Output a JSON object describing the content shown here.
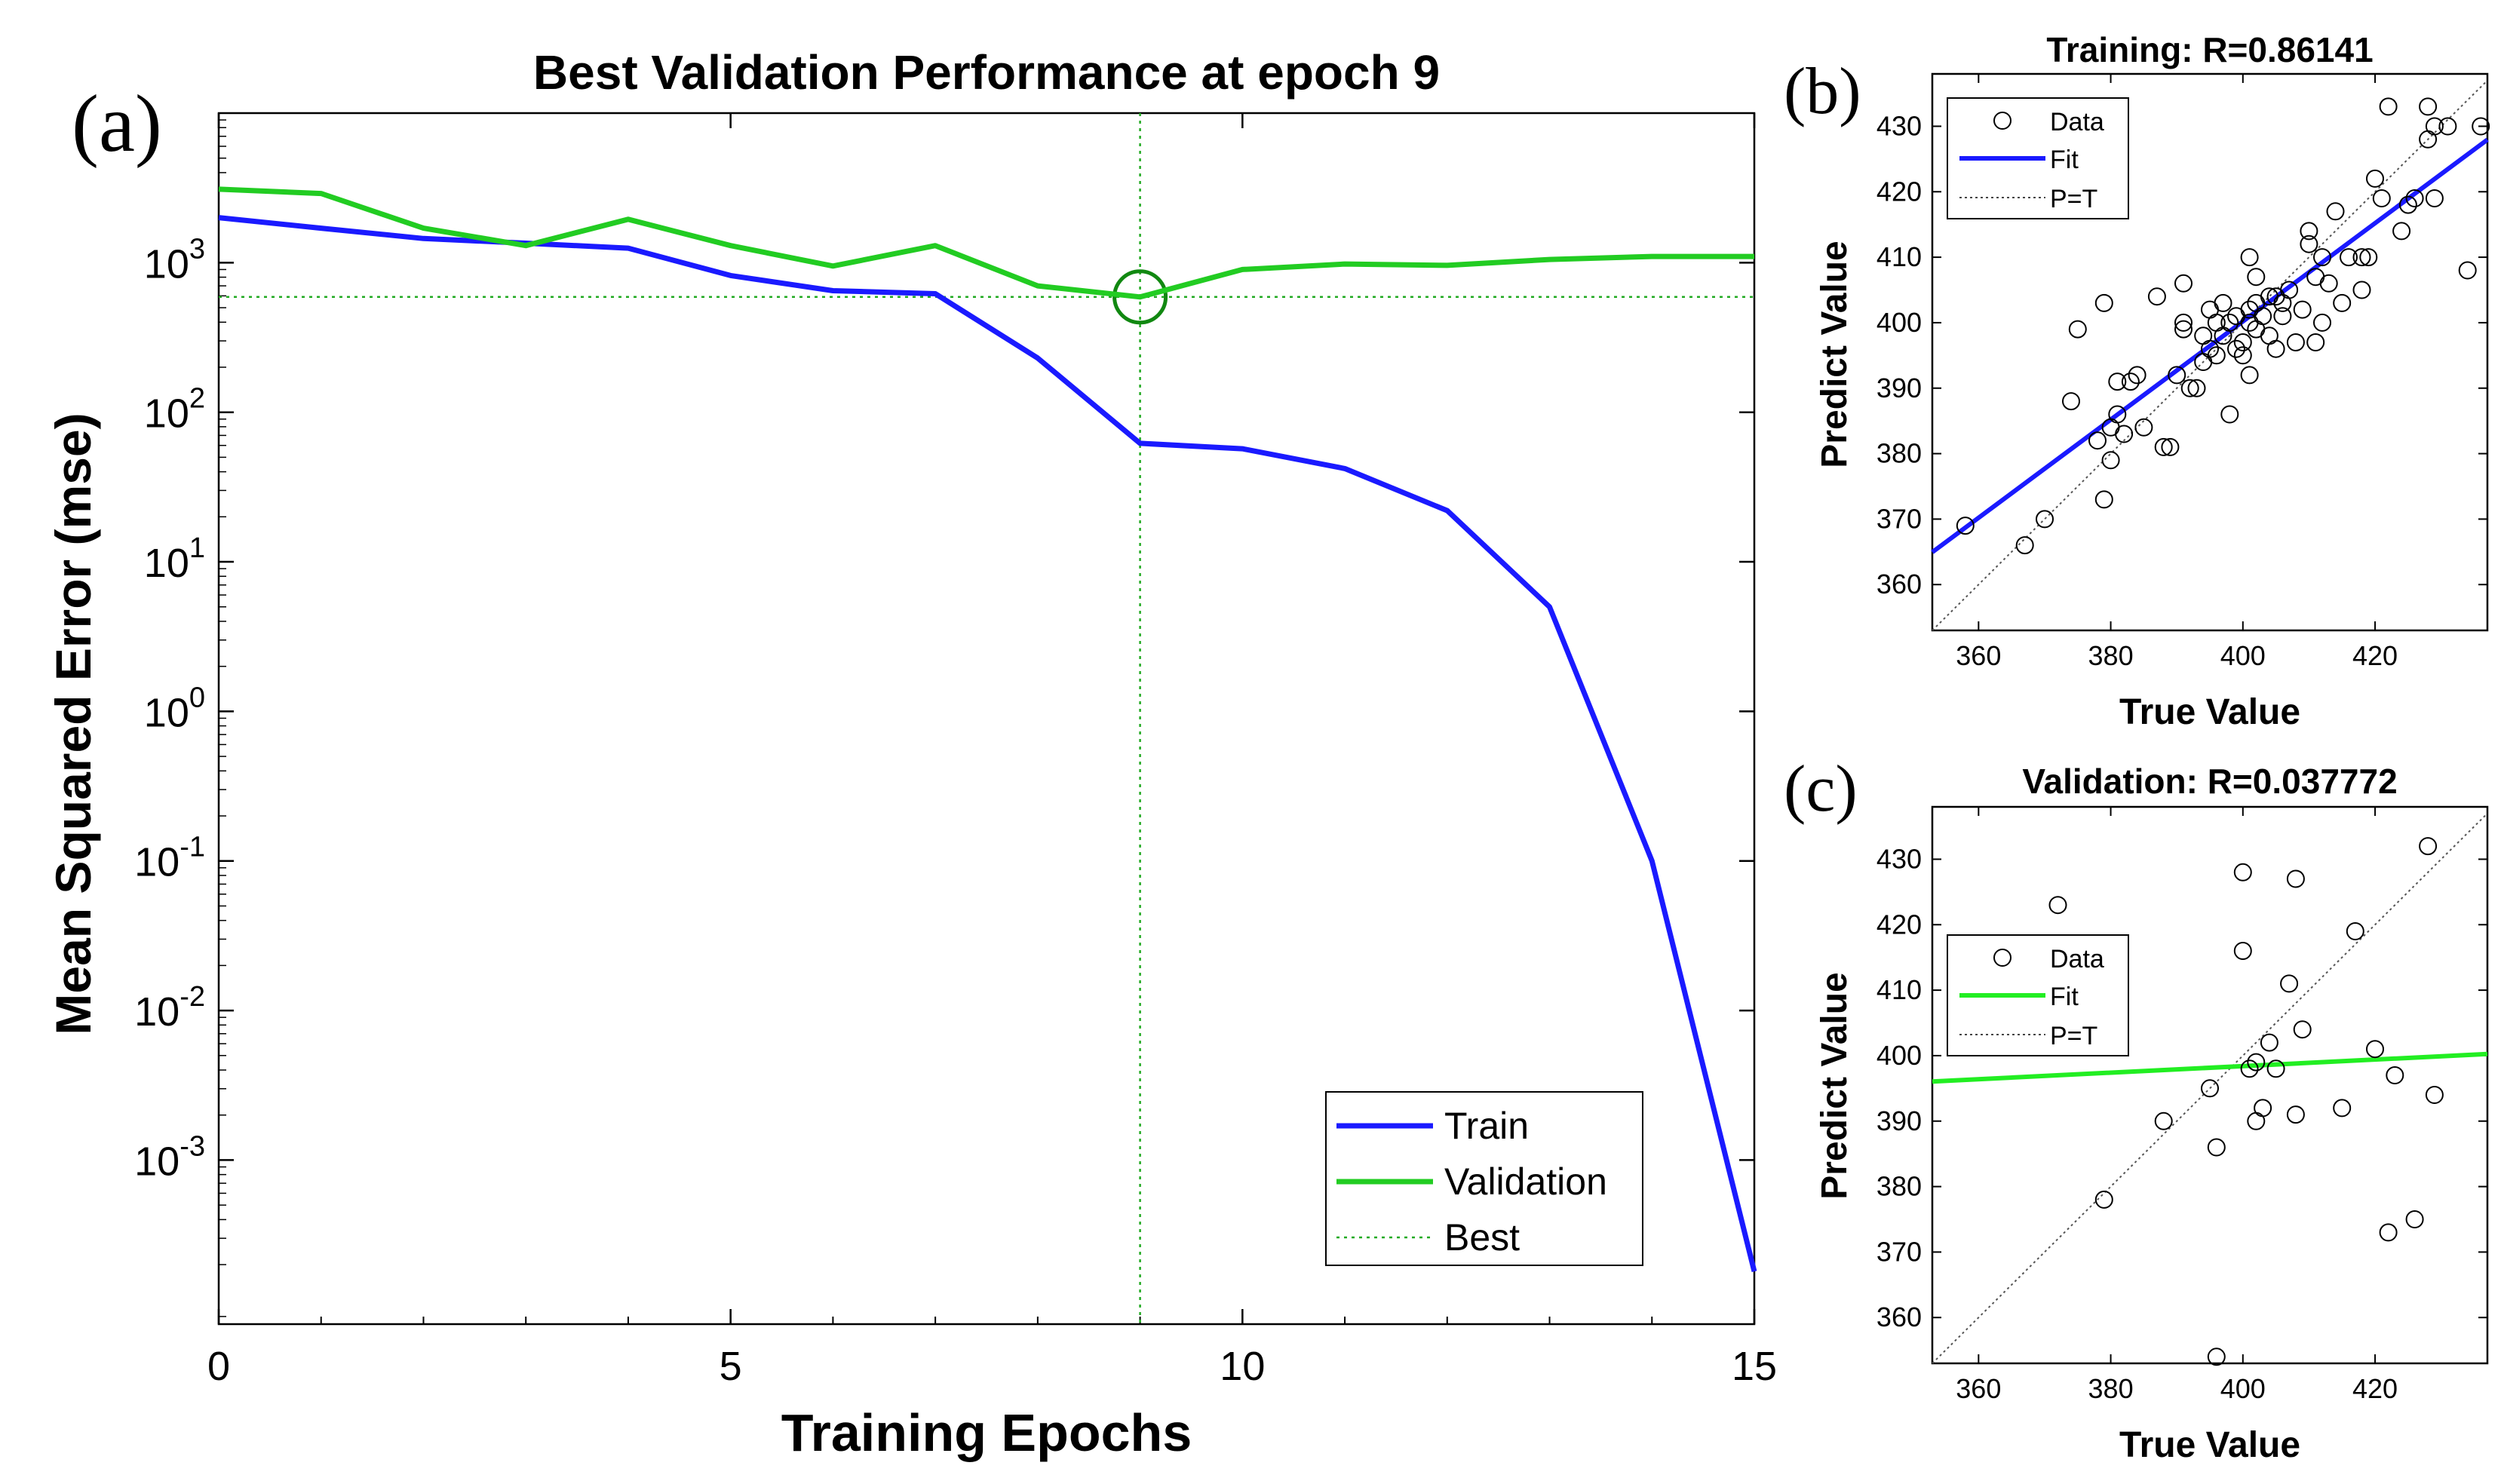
{
  "chart_data": [
    {
      "id": "a",
      "panel_label": "(a)",
      "type": "line",
      "title": "Best Validation Performance at epoch 9",
      "xlabel": "Training Epochs",
      "ylabel": "Mean Squared Error  (mse)",
      "yscale": "log",
      "xlim": [
        0,
        15
      ],
      "ylim": [
        8e-05,
        10000
      ],
      "x_ticks": [
        0,
        5,
        10,
        15
      ],
      "x_tick_labels": [
        "0",
        "5",
        "10",
        "15"
      ],
      "y_ticks": [
        0.001,
        0.01,
        0.1,
        1,
        10,
        100,
        1000
      ],
      "y_tick_labels": [
        {
          "base": "10",
          "exp": "-3"
        },
        {
          "base": "10",
          "exp": "-2"
        },
        {
          "base": "10",
          "exp": "-1"
        },
        {
          "base": "10",
          "exp": "0"
        },
        {
          "base": "10",
          "exp": "1"
        },
        {
          "base": "10",
          "exp": "2"
        },
        {
          "base": "10",
          "exp": "3"
        }
      ],
      "x": [
        0,
        1,
        2,
        3,
        4,
        5,
        6,
        7,
        8,
        9,
        10,
        11,
        12,
        13,
        14,
        15
      ],
      "series": [
        {
          "name": "Train",
          "color": "#1a1aff",
          "values": [
            2000,
            1700,
            1450,
            1350,
            1250,
            820,
            650,
            620,
            230,
            62,
            57,
            42,
            22,
            5,
            0.1,
            0.00018
          ]
        },
        {
          "name": "Validation",
          "color": "#22cc22",
          "values": [
            3100,
            2900,
            1700,
            1300,
            1950,
            1300,
            950,
            1300,
            700,
            590,
            900,
            980,
            960,
            1050,
            1100,
            1100
          ]
        }
      ],
      "best": {
        "name": "Best",
        "epoch": 9,
        "value": 590,
        "color": "#22aa22"
      },
      "legend": {
        "position": "bottom-right",
        "entries": [
          "Train",
          "Validation",
          "Best"
        ]
      }
    },
    {
      "id": "b",
      "panel_label": "(b)",
      "type": "scatter",
      "title": "Training: R=0.86141",
      "xlabel": "True Value",
      "ylabel": "Predict Value",
      "xlim": [
        353,
        437
      ],
      "ylim": [
        353,
        438
      ],
      "x_ticks": [
        360,
        380,
        400,
        420
      ],
      "y_ticks": [
        360,
        370,
        380,
        390,
        400,
        410,
        420,
        430
      ],
      "fit": {
        "slope": 0.75,
        "intercept": 100.2,
        "color": "#1a1aff",
        "name": "Fit"
      },
      "legend": {
        "position": "top-left",
        "entries": [
          "Data",
          "Fit",
          "P=T"
        ]
      },
      "points": [
        [
          358,
          369
        ],
        [
          367,
          366
        ],
        [
          370,
          370
        ],
        [
          374,
          388
        ],
        [
          375,
          399
        ],
        [
          378,
          382
        ],
        [
          379,
          403
        ],
        [
          379,
          373
        ],
        [
          380,
          384
        ],
        [
          380,
          379
        ],
        [
          381,
          386
        ],
        [
          381,
          391
        ],
        [
          382,
          383
        ],
        [
          383,
          391
        ],
        [
          384,
          392
        ],
        [
          385,
          384
        ],
        [
          387,
          404
        ],
        [
          388,
          381
        ],
        [
          389,
          381
        ],
        [
          390,
          392
        ],
        [
          391,
          399
        ],
        [
          391,
          400
        ],
        [
          391,
          406
        ],
        [
          392,
          390
        ],
        [
          393,
          390
        ],
        [
          394,
          398
        ],
        [
          394,
          394
        ],
        [
          395,
          402
        ],
        [
          395,
          396
        ],
        [
          396,
          400
        ],
        [
          396,
          395
        ],
        [
          397,
          398
        ],
        [
          397,
          403
        ],
        [
          398,
          386
        ],
        [
          398,
          400
        ],
        [
          399,
          396
        ],
        [
          399,
          401
        ],
        [
          400,
          395
        ],
        [
          400,
          397
        ],
        [
          401,
          400
        ],
        [
          401,
          402
        ],
        [
          401,
          392
        ],
        [
          401,
          410
        ],
        [
          402,
          403
        ],
        [
          402,
          399
        ],
        [
          402,
          407
        ],
        [
          403,
          401
        ],
        [
          404,
          404
        ],
        [
          404,
          398
        ],
        [
          405,
          404
        ],
        [
          405,
          396
        ],
        [
          406,
          403
        ],
        [
          406,
          401
        ],
        [
          407,
          405
        ],
        [
          408,
          397
        ],
        [
          409,
          402
        ],
        [
          410,
          412
        ],
        [
          410,
          414
        ],
        [
          411,
          397
        ],
        [
          411,
          407
        ],
        [
          412,
          410
        ],
        [
          412,
          400
        ],
        [
          413,
          406
        ],
        [
          414,
          417
        ],
        [
          415,
          403
        ],
        [
          416,
          410
        ],
        [
          418,
          405
        ],
        [
          418,
          410
        ],
        [
          419,
          410
        ],
        [
          420,
          422
        ],
        [
          421,
          419
        ],
        [
          422,
          433
        ],
        [
          424,
          414
        ],
        [
          425,
          418
        ],
        [
          426,
          419
        ],
        [
          428,
          433
        ],
        [
          428,
          428
        ],
        [
          429,
          419
        ],
        [
          429,
          430
        ],
        [
          431,
          430
        ],
        [
          434,
          408
        ],
        [
          436,
          430
        ]
      ]
    },
    {
      "id": "c",
      "panel_label": "(c)",
      "type": "scatter",
      "title": "Validation: R=0.037772",
      "xlabel": "True Value",
      "ylabel": "Predict Value",
      "xlim": [
        353,
        437
      ],
      "ylim": [
        353,
        438
      ],
      "x_ticks": [
        360,
        380,
        400,
        420
      ],
      "y_ticks": [
        360,
        370,
        380,
        390,
        400,
        410,
        420,
        430
      ],
      "fit": {
        "slope": 0.05,
        "intercept": 378.4,
        "color": "#22ee22",
        "name": "Fit"
      },
      "legend": {
        "position": "middle-left",
        "entries": [
          "Data",
          "Fit",
          "P=T"
        ]
      },
      "points": [
        [
          372,
          423
        ],
        [
          379,
          378
        ],
        [
          388,
          390
        ],
        [
          395,
          395
        ],
        [
          396,
          386
        ],
        [
          396,
          354
        ],
        [
          400,
          428
        ],
        [
          400,
          416
        ],
        [
          401,
          398
        ],
        [
          402,
          390
        ],
        [
          402,
          399
        ],
        [
          403,
          392
        ],
        [
          404,
          402
        ],
        [
          405,
          398
        ],
        [
          407,
          411
        ],
        [
          408,
          427
        ],
        [
          408,
          391
        ],
        [
          409,
          404
        ],
        [
          415,
          392
        ],
        [
          417,
          419
        ],
        [
          420,
          401
        ],
        [
          422,
          373
        ],
        [
          423,
          397
        ],
        [
          426,
          375
        ],
        [
          428,
          432
        ],
        [
          429,
          394
        ]
      ]
    }
  ]
}
